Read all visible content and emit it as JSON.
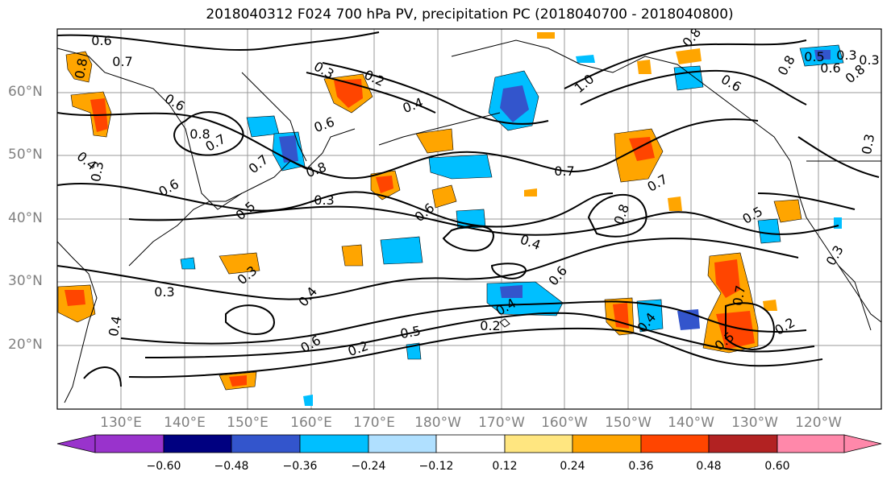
{
  "title": "2018040312 F024 700 hPa PV, precipitation PC (2018040700 - 2018040800)",
  "lat_labels": [
    "60°N",
    "50°N",
    "40°N",
    "30°N",
    "20°N"
  ],
  "lon_labels": [
    "130°E",
    "140°E",
    "150°E",
    "160°E",
    "170°E",
    "180°W",
    "170°W",
    "160°W",
    "150°W",
    "140°W",
    "130°W",
    "120°W"
  ],
  "contour_labels": [
    "0.6",
    "0.7",
    "0.8",
    "0.6",
    "0.7",
    "0.8",
    "0.3",
    "0.2",
    "0.4",
    "0.6",
    "0.5",
    "0.7",
    "0.8",
    "0.3",
    "0.6",
    "0.4",
    "0.2",
    "0.6",
    "0.5",
    "0.4",
    "0.3",
    "0.3",
    "1.0",
    "0.7",
    "0.8",
    "0.8",
    "0.4",
    "0.6",
    "0.4",
    "0.7",
    "0.6",
    "0.5",
    "0.6",
    "0.3",
    "0.3",
    "0.8",
    "0.3",
    "0.5",
    "0.2",
    "0.4",
    "0.3",
    "0.6",
    "0.2",
    "0.8",
    "0.5",
    "0.7",
    "0.3",
    "0.4"
  ],
  "colorbar": {
    "colors": [
      "#9933cc",
      "#000080",
      "#3355cc",
      "#00bfff",
      "#b0e0ff",
      "#ffffff",
      "#ffe680",
      "#ffa500",
      "#ff4500",
      "#b22222",
      "#ff88aa"
    ],
    "ticks": [
      "−0.60",
      "−0.48",
      "−0.36",
      "−0.24",
      "−0.12",
      "0.12",
      "0.24",
      "0.36",
      "0.48",
      "0.60"
    ]
  },
  "legend_colors": {
    "ocean": "#ffffff",
    "grid": "#999999",
    "coast": "#000000",
    "contour": "#000000",
    "label_gray": "#808080"
  }
}
